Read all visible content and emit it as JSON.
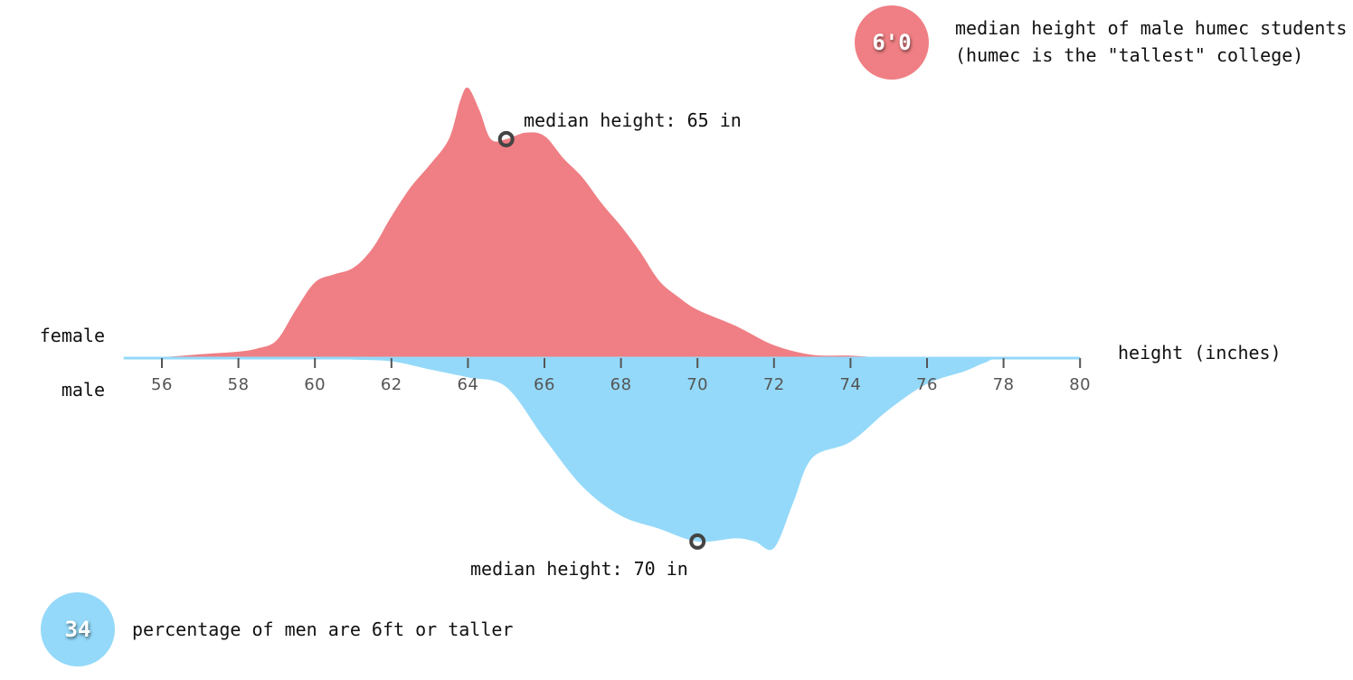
{
  "chart_data": {
    "type": "area",
    "xlabel": "height (inches)",
    "xlim": [
      55,
      80
    ],
    "ticks": [
      56,
      58,
      60,
      62,
      64,
      66,
      68,
      70,
      72,
      74,
      76,
      78,
      80
    ],
    "colors": {
      "female": "#ef7f84",
      "male": "#94d9f9"
    },
    "series": [
      {
        "name": "female",
        "direction": "up",
        "points": [
          [
            55,
            0
          ],
          [
            56,
            0.003
          ],
          [
            57,
            0.012
          ],
          [
            58,
            0.02
          ],
          [
            58.5,
            0.03
          ],
          [
            59,
            0.055
          ],
          [
            59.5,
            0.15
          ],
          [
            60,
            0.235
          ],
          [
            60.5,
            0.26
          ],
          [
            61,
            0.28
          ],
          [
            61.5,
            0.34
          ],
          [
            62,
            0.44
          ],
          [
            62.5,
            0.53
          ],
          [
            63,
            0.6
          ],
          [
            63.5,
            0.68
          ],
          [
            63.8,
            0.8
          ],
          [
            64,
            0.84
          ],
          [
            64.3,
            0.77
          ],
          [
            64.6,
            0.68
          ],
          [
            65,
            0.68
          ],
          [
            65.5,
            0.7
          ],
          [
            66,
            0.69
          ],
          [
            66.5,
            0.62
          ],
          [
            67,
            0.56
          ],
          [
            67.5,
            0.48
          ],
          [
            68,
            0.41
          ],
          [
            68.5,
            0.33
          ],
          [
            69,
            0.24
          ],
          [
            69.5,
            0.19
          ],
          [
            70,
            0.15
          ],
          [
            71,
            0.1
          ],
          [
            72,
            0.04
          ],
          [
            73,
            0.01
          ],
          [
            74,
            0.008
          ],
          [
            75,
            0.0
          ],
          [
            76,
            0
          ],
          [
            78,
            0
          ],
          [
            80,
            0
          ]
        ]
      },
      {
        "name": "male",
        "direction": "down",
        "points": [
          [
            55,
            0
          ],
          [
            60,
            0.0
          ],
          [
            61,
            0.005
          ],
          [
            62,
            0.01
          ],
          [
            63,
            0.035
          ],
          [
            64,
            0.06
          ],
          [
            65,
            0.09
          ],
          [
            66,
            0.25
          ],
          [
            67,
            0.4
          ],
          [
            68,
            0.49
          ],
          [
            69,
            0.53
          ],
          [
            70,
            0.57
          ],
          [
            71,
            0.56
          ],
          [
            71.5,
            0.57
          ],
          [
            72,
            0.59
          ],
          [
            72.5,
            0.45
          ],
          [
            73,
            0.31
          ],
          [
            74,
            0.26
          ],
          [
            75,
            0.16
          ],
          [
            76,
            0.08
          ],
          [
            77,
            0.04
          ],
          [
            77.5,
            0.015
          ],
          [
            78,
            0
          ],
          [
            80,
            0
          ]
        ]
      }
    ],
    "annotations": {
      "female_median": {
        "value": 65,
        "label": "median height: 65 in"
      },
      "male_median": {
        "value": 70,
        "label": "median height: 70 in"
      }
    },
    "group_labels": {
      "top": "female",
      "bottom": "male"
    }
  },
  "callouts": {
    "humec": {
      "value": "6'0",
      "line1": "median height of male humec students",
      "line2": "(humec is the \"tallest\" college)"
    },
    "tall_men": {
      "value": "34",
      "text": "percentage of men are 6ft or taller"
    }
  }
}
